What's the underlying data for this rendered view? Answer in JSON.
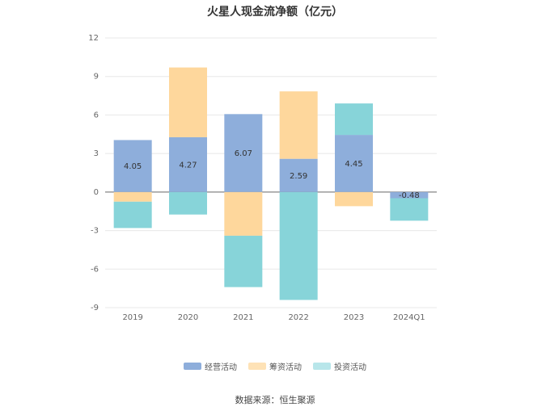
{
  "chart_data": {
    "type": "bar",
    "stacked": true,
    "title": "火星人现金流净额（亿元）",
    "categories": [
      "2019",
      "2020",
      "2021",
      "2022",
      "2023",
      "2024Q1"
    ],
    "series": [
      {
        "name": "经营活动",
        "color": "#8eaedb",
        "values": [
          4.05,
          4.27,
          6.07,
          2.59,
          4.45,
          -0.48
        ],
        "labels": [
          "4.05",
          "4.27",
          "6.07",
          "2.59",
          "4.45",
          "-0.48"
        ]
      },
      {
        "name": "筹资活动",
        "color": "#fed79c",
        "values": [
          -0.75,
          5.43,
          -3.4,
          5.25,
          -1.1,
          0
        ]
      },
      {
        "name": "投资活动",
        "color": "#87d4d9",
        "values": [
          -2.05,
          -1.75,
          -4.0,
          -8.4,
          2.45,
          -1.75
        ]
      }
    ],
    "yticks": [
      "12",
      "9",
      "6",
      "3",
      "0",
      "-3",
      "-6",
      "-9"
    ],
    "ylim": [
      -9,
      12
    ],
    "grid": true,
    "legend_position": "bottom"
  },
  "source": "数据来源：恒生聚源",
  "legend_colors": [
    "#8eaedb",
    "#fee2b6",
    "#b8e6ea"
  ]
}
